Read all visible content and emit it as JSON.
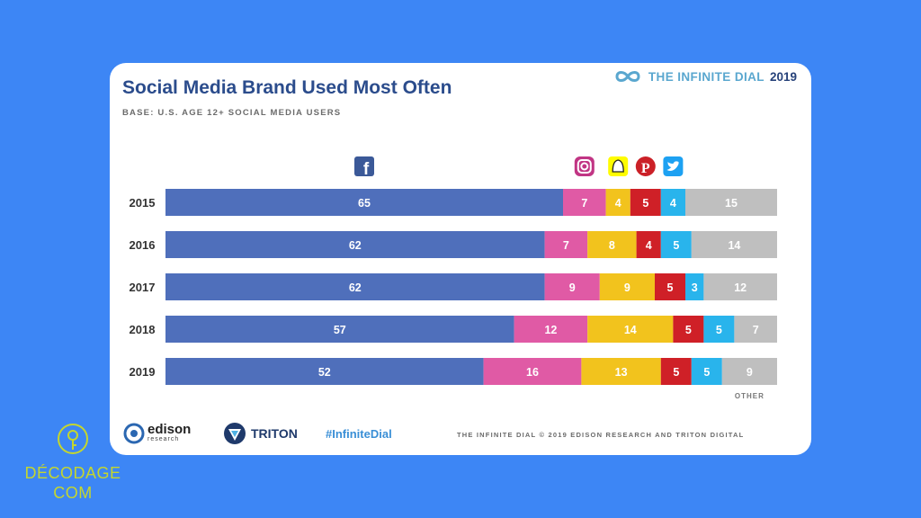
{
  "header": {
    "title": "Social Media Brand Used Most Often",
    "subtitle": "BASE: U.S. AGE 12+ SOCIAL MEDIA USERS"
  },
  "brand": {
    "text": "THE INFINITE DIAL",
    "year": "2019"
  },
  "footer": {
    "edison_name": "edison",
    "edison_sub": "research",
    "triton_name": "TRITON",
    "hashtag": "#InfiniteDial",
    "credit": "THE INFINITE DIAL   © 2019 EDISON RESEARCH AND TRITON DIGITAL"
  },
  "watermark": {
    "line1": "DÉCODAGE",
    "line2": "COM"
  },
  "icons": [
    "facebook-icon",
    "instagram-icon",
    "snapchat-icon",
    "pinterest-icon",
    "twitter-icon"
  ],
  "chart_data": {
    "type": "bar",
    "stacked": true,
    "orientation": "horizontal",
    "categories": [
      "2015",
      "2016",
      "2017",
      "2018",
      "2019"
    ],
    "series": [
      {
        "key": "facebook",
        "color": "#4f6fbb",
        "values": [
          65,
          62,
          62,
          57,
          52
        ]
      },
      {
        "key": "instagram",
        "color": "#e05aa5",
        "values": [
          7,
          7,
          9,
          12,
          16
        ]
      },
      {
        "key": "snapchat",
        "color": "#f2c31d",
        "values": [
          4,
          8,
          9,
          14,
          13
        ]
      },
      {
        "key": "pinterest",
        "color": "#cf2027",
        "values": [
          5,
          4,
          5,
          5,
          5
        ]
      },
      {
        "key": "twitter",
        "color": "#29b4ec",
        "values": [
          4,
          5,
          3,
          5,
          5
        ]
      },
      {
        "name": "OTHER",
        "key": "other",
        "color": "#bfbfbf",
        "values": [
          15,
          14,
          12,
          7,
          9
        ]
      }
    ],
    "xlim": [
      0,
      100
    ]
  }
}
